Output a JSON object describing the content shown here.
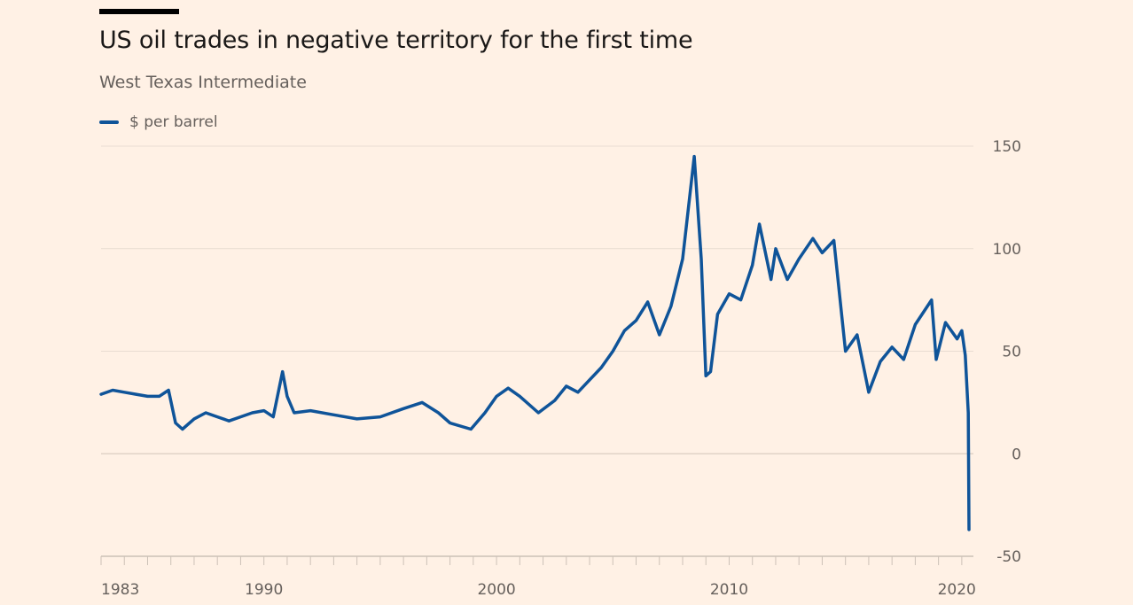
{
  "header": {
    "title": "US oil trades in negative territory for the first time",
    "subtitle": "West Texas Intermediate",
    "legend_label": "$ per barrel"
  },
  "colors": {
    "background": "#fff1e5",
    "series": "#0f5499",
    "grid": "#e9ddd2",
    "axis": "#ccc1b7",
    "text": "#66605c"
  },
  "chart_data": {
    "type": "line",
    "title": "US oil trades in negative territory for the first time",
    "subtitle": "West Texas Intermediate",
    "xlabel": "",
    "ylabel": "",
    "xlim": [
      1983,
      2020.5
    ],
    "ylim": [
      -50,
      150
    ],
    "yticks": [
      150,
      100,
      50,
      0,
      -50
    ],
    "xtick_labels": [
      "1983",
      "1990",
      "2000",
      "2010",
      "2020"
    ],
    "y_axis_position": "right",
    "grid": true,
    "legend": "top-left",
    "series": [
      {
        "name": "$ per barrel",
        "color": "#0f5499",
        "points": [
          [
            1983.0,
            29
          ],
          [
            1983.5,
            31
          ],
          [
            1984.0,
            30
          ],
          [
            1984.5,
            29
          ],
          [
            1985.0,
            28
          ],
          [
            1985.5,
            28
          ],
          [
            1985.9,
            31
          ],
          [
            1986.2,
            15
          ],
          [
            1986.5,
            12
          ],
          [
            1987.0,
            17
          ],
          [
            1987.5,
            20
          ],
          [
            1988.0,
            18
          ],
          [
            1988.5,
            16
          ],
          [
            1989.0,
            18
          ],
          [
            1989.5,
            20
          ],
          [
            1990.0,
            21
          ],
          [
            1990.4,
            18
          ],
          [
            1990.8,
            40
          ],
          [
            1991.0,
            28
          ],
          [
            1991.3,
            20
          ],
          [
            1992.0,
            21
          ],
          [
            1993.0,
            19
          ],
          [
            1994.0,
            17
          ],
          [
            1995.0,
            18
          ],
          [
            1996.0,
            22
          ],
          [
            1996.8,
            25
          ],
          [
            1997.5,
            20
          ],
          [
            1998.0,
            15
          ],
          [
            1998.9,
            12
          ],
          [
            1999.5,
            20
          ],
          [
            2000.0,
            28
          ],
          [
            2000.5,
            32
          ],
          [
            2001.0,
            28
          ],
          [
            2001.8,
            20
          ],
          [
            2002.5,
            26
          ],
          [
            2003.0,
            33
          ],
          [
            2003.5,
            30
          ],
          [
            2004.0,
            36
          ],
          [
            2004.5,
            42
          ],
          [
            2005.0,
            50
          ],
          [
            2005.5,
            60
          ],
          [
            2006.0,
            65
          ],
          [
            2006.5,
            74
          ],
          [
            2007.0,
            58
          ],
          [
            2007.5,
            72
          ],
          [
            2008.0,
            95
          ],
          [
            2008.5,
            145
          ],
          [
            2008.8,
            95
          ],
          [
            2009.0,
            38
          ],
          [
            2009.2,
            40
          ],
          [
            2009.5,
            68
          ],
          [
            2010.0,
            78
          ],
          [
            2010.5,
            75
          ],
          [
            2011.0,
            92
          ],
          [
            2011.3,
            112
          ],
          [
            2011.8,
            85
          ],
          [
            2012.0,
            100
          ],
          [
            2012.5,
            85
          ],
          [
            2013.0,
            95
          ],
          [
            2013.6,
            105
          ],
          [
            2014.0,
            98
          ],
          [
            2014.5,
            104
          ],
          [
            2015.0,
            50
          ],
          [
            2015.5,
            58
          ],
          [
            2016.0,
            30
          ],
          [
            2016.5,
            45
          ],
          [
            2017.0,
            52
          ],
          [
            2017.5,
            46
          ],
          [
            2018.0,
            63
          ],
          [
            2018.7,
            75
          ],
          [
            2018.9,
            46
          ],
          [
            2019.3,
            64
          ],
          [
            2019.8,
            56
          ],
          [
            2020.0,
            60
          ],
          [
            2020.15,
            48
          ],
          [
            2020.28,
            20
          ],
          [
            2020.31,
            -37
          ]
        ]
      }
    ]
  }
}
